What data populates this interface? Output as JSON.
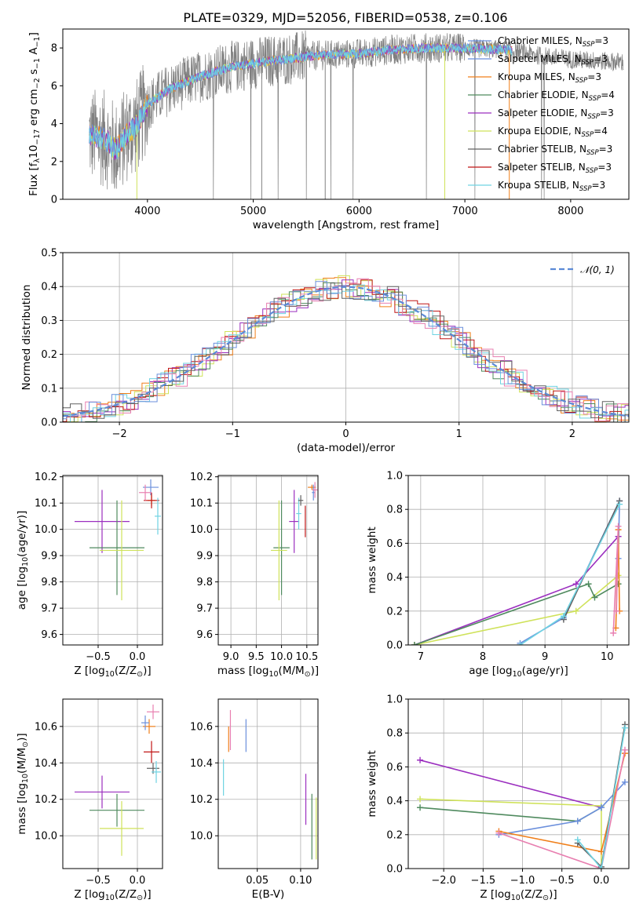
{
  "figure": {
    "title": "PLATE=0329, MJD=52056, FIBERID=0538, z=0.106"
  },
  "colors": {
    "Chabrier MILES": "#6b8fdc",
    "Salpeter MILES": "#6b8fdc",
    "Kroupa MILES": "#f07f1a",
    "Chabrier ELODIE": "#4f8a5e",
    "Salpeter ELODIE": "#9b2fbf",
    "Kroupa ELODIE": "#cfe25a",
    "Chabrier STELIB": "#606060",
    "Salpeter STELIB": "#c01515",
    "Kroupa STELIB": "#6fd3e2",
    "normal": "#5b8ad6",
    "pink": "#e87fb0"
  },
  "chart_data": [
    {
      "id": "spectrum",
      "type": "line",
      "xlabel": "wavelength [Angstrom, rest frame]",
      "ylabel": "Flux [f$_\\lambda$10$^{-17}$ erg cm$^{-2}$ s$^{-1}$ A$^{-1}$]",
      "ylabel_parts": [
        "Flux [f",
        "λ",
        "10",
        "−17",
        " erg cm",
        "−2",
        " s",
        "−1",
        " A",
        "−1",
        "]"
      ],
      "xlim": [
        3200,
        8550
      ],
      "ylim": [
        0,
        9
      ],
      "xticks": [
        4000,
        5000,
        6000,
        7000,
        8000
      ],
      "yticks": [
        0,
        2,
        4,
        6,
        8
      ],
      "legend_position": "upper right",
      "legend": [
        {
          "name": "Chabrier MILES",
          "nssp": "3"
        },
        {
          "name": "Salpeter MILES",
          "nssp": "3"
        },
        {
          "name": "Kroupa MILES",
          "nssp": "3"
        },
        {
          "name": "Chabrier ELODIE",
          "nssp": "4"
        },
        {
          "name": "Salpeter ELODIE",
          "nssp": "3"
        },
        {
          "name": "Kroupa ELODIE",
          "nssp": "4"
        },
        {
          "name": "Chabrier STELIB",
          "nssp": "3"
        },
        {
          "name": "Salpeter STELIB",
          "nssp": "3"
        },
        {
          "name": "Kroupa STELIB",
          "nssp": "3"
        }
      ],
      "legend_suffix": "N",
      "legend_sub": "SSP",
      "continuum": [
        [
          3450,
          3.4
        ],
        [
          3600,
          3.2
        ],
        [
          3700,
          2.6
        ],
        [
          3800,
          3.4
        ],
        [
          3900,
          3.9
        ],
        [
          4000,
          5.0
        ],
        [
          4200,
          5.8
        ],
        [
          4500,
          6.5
        ],
        [
          4800,
          7.0
        ],
        [
          5000,
          7.2
        ],
        [
          5300,
          7.4
        ],
        [
          5600,
          7.6
        ],
        [
          6000,
          7.7
        ],
        [
          6300,
          7.9
        ],
        [
          6600,
          8.0
        ],
        [
          7000,
          8.0
        ],
        [
          7400,
          7.9
        ],
        [
          7700,
          7.6
        ],
        [
          8000,
          7.4
        ],
        [
          8300,
          7.3
        ],
        [
          8500,
          7.25
        ]
      ]
    },
    {
      "id": "residuals",
      "type": "histogram",
      "xlabel": "(data-model)/error",
      "ylabel": "Normed distribution",
      "xlim": [
        -2.5,
        2.5
      ],
      "ylim": [
        0,
        0.5
      ],
      "xticks": [
        -2,
        -1,
        0,
        1,
        2
      ],
      "xtick_labels": [
        "−2",
        "−1",
        "0",
        "1",
        "2"
      ],
      "yticks": [
        0.0,
        0.1,
        0.2,
        0.3,
        0.4,
        0.5
      ],
      "ytick_labels": [
        "0.0",
        "0.1",
        "0.2",
        "0.3",
        "0.4",
        "0.5"
      ],
      "grid": true,
      "legend_position": "upper right",
      "reference_curve": {
        "name": "𝒩(0, 1)",
        "mean": 0,
        "sigma": 1
      }
    },
    {
      "id": "age_vs_Z",
      "type": "scatter",
      "xlabel_parts": [
        "Z [log",
        "10",
        "(Z/Z",
        "⊙",
        ")]"
      ],
      "ylabel_parts": [
        "age  [log",
        "10",
        "(age/yr)]"
      ],
      "xlim": [
        -0.95,
        0.32
      ],
      "ylim": [
        9.56,
        10.205
      ],
      "xticks": [
        -0.5,
        0.0
      ],
      "xtick_labels": [
        "−0.5",
        "0.0"
      ],
      "yticks": [
        9.6,
        9.7,
        9.8,
        9.9,
        10.0,
        10.1,
        10.2
      ],
      "ytick_labels": [
        "9.6",
        "9.7",
        "9.8",
        "9.9",
        "10.0",
        "10.1",
        "10.2"
      ],
      "grid": true,
      "points": [
        {
          "series": "Salpeter ELODIE",
          "x": -0.45,
          "xerr": 0.35,
          "y": 10.03,
          "yerr": 0.12
        },
        {
          "series": "Chabrier ELODIE",
          "x": -0.26,
          "xerr": 0.35,
          "y": 9.93,
          "yerr": 0.18
        },
        {
          "series": "Kroupa ELODIE",
          "x": -0.2,
          "xerr": 0.28,
          "y": 9.92,
          "yerr": 0.19
        },
        {
          "series": "Chabrier MILES",
          "x": 0.17,
          "xerr": 0.1,
          "y": 10.16,
          "yerr": 0.03
        },
        {
          "series": "Kroupa MILES",
          "x": 0.18,
          "xerr": 0.05,
          "y": 10.11,
          "yerr": 0.02
        },
        {
          "series": "Salpeter STELIB",
          "x": 0.18,
          "xerr": 0.1,
          "y": 10.11,
          "yerr": 0.03
        },
        {
          "series": "pink",
          "x": 0.1,
          "xerr": 0.08,
          "y": 10.14,
          "yerr": 0.03
        },
        {
          "series": "Kroupa STELIB",
          "x": 0.26,
          "xerr": 0.04,
          "y": 10.05,
          "yerr": 0.07
        }
      ]
    },
    {
      "id": "age_vs_mass",
      "type": "scatter",
      "xlabel_parts": [
        "mass [log",
        "10",
        "(M/M",
        "⊙",
        ")]"
      ],
      "xlim": [
        8.75,
        10.72
      ],
      "ylim": [
        9.56,
        10.205
      ],
      "xticks": [
        9.0,
        9.5,
        10.0,
        10.5
      ],
      "xtick_labels": [
        "9.0",
        "9.5",
        "10.0",
        "10.5"
      ],
      "yticks": [
        9.6,
        9.7,
        9.8,
        9.9,
        10.0,
        10.1,
        10.2
      ],
      "ytick_labels": [
        "9.6",
        "9.7",
        "9.8",
        "9.9",
        "10.0",
        "10.1",
        "10.2"
      ],
      "grid": true,
      "points": [
        {
          "series": "Chabrier ELODIE",
          "x": 10.0,
          "xerr": 0.16,
          "y": 9.93,
          "yerr": 0.18
        },
        {
          "series": "Kroupa ELODIE",
          "x": 9.95,
          "xerr": 0.16,
          "y": 9.92,
          "yerr": 0.19
        },
        {
          "series": "Salpeter ELODIE",
          "x": 10.25,
          "xerr": 0.1,
          "y": 10.03,
          "yerr": 0.12
        },
        {
          "series": "Salpeter STELIB",
          "x": 10.47,
          "xerr": 0.0,
          "y": 10.03,
          "yerr": 0.06
        },
        {
          "series": "Kroupa STELIB",
          "x": 10.34,
          "xerr": 0.05,
          "y": 10.06,
          "yerr": 0.06
        },
        {
          "series": "Chabrier STELIB",
          "x": 10.38,
          "xerr": 0.05,
          "y": 10.11,
          "yerr": 0.02
        },
        {
          "series": "Kroupa MILES",
          "x": 10.6,
          "xerr": 0.08,
          "y": 10.16,
          "yerr": 0.01
        },
        {
          "series": "Chabrier MILES",
          "x": 10.63,
          "xerr": 0.03,
          "y": 10.14,
          "yerr": 0.03
        },
        {
          "series": "pink",
          "x": 10.66,
          "xerr": 0.05,
          "y": 10.15,
          "yerr": 0.03
        }
      ]
    },
    {
      "id": "weight_vs_age",
      "type": "line",
      "xlabel_parts": [
        "age  [log",
        "10",
        "(age/yr)]"
      ],
      "ylabel": "mass weight",
      "xlim": [
        6.8,
        10.35
      ],
      "ylim": [
        0,
        1
      ],
      "xticks": [
        7,
        8,
        9,
        10
      ],
      "xtick_labels": [
        "7",
        "8",
        "9",
        "10"
      ],
      "yticks": [
        0.0,
        0.2,
        0.4,
        0.6,
        0.8,
        1.0
      ],
      "ytick_labels": [
        "0.0",
        "0.2",
        "0.4",
        "0.6",
        "0.8",
        "1.0"
      ],
      "grid": true,
      "series": [
        {
          "name": "Salpeter ELODIE",
          "x": [
            6.9,
            9.5,
            10.18
          ],
          "y": [
            0.0,
            0.36,
            0.64
          ]
        },
        {
          "name": "Kroupa ELODIE",
          "x": [
            6.9,
            9.5,
            10.18
          ],
          "y": [
            0.0,
            0.2,
            0.41
          ]
        },
        {
          "name": "Chabrier ELODIE",
          "x": [
            6.9,
            9.7,
            9.8,
            10.18
          ],
          "y": [
            0.0,
            0.36,
            0.28,
            0.36
          ]
        },
        {
          "name": "Chabrier MILES",
          "x": [
            8.6,
            9.3,
            10.2,
            10.18
          ],
          "y": [
            0.01,
            0.16,
            0.85,
            0.51
          ]
        },
        {
          "name": "Kroupa MILES",
          "x": [
            10.14,
            10.18,
            10.2
          ],
          "y": [
            0.1,
            0.68,
            0.2
          ]
        },
        {
          "name": "pink",
          "x": [
            10.1,
            10.18,
            10.15
          ],
          "y": [
            0.07,
            0.7,
            0.2
          ]
        },
        {
          "name": "Chabrier STELIB",
          "x": [
            9.3,
            10.2
          ],
          "y": [
            0.15,
            0.85
          ]
        },
        {
          "name": "Kroupa STELIB",
          "x": [
            8.6,
            9.3,
            10.2
          ],
          "y": [
            0.0,
            0.17,
            0.83
          ]
        }
      ]
    },
    {
      "id": "mass_vs_Z",
      "type": "scatter",
      "xlabel_parts": [
        "Z [log",
        "10",
        "(Z/Z",
        "⊙",
        ")]"
      ],
      "ylabel_parts": [
        "mass [log",
        "10",
        "(M/M",
        "⊙",
        ")]"
      ],
      "xlim": [
        -0.95,
        0.32
      ],
      "ylim": [
        9.82,
        10.75
      ],
      "xticks": [
        -0.5,
        0.0
      ],
      "xtick_labels": [
        "−0.5",
        "0.0"
      ],
      "yticks": [
        10.0,
        10.2,
        10.4,
        10.6
      ],
      "ytick_labels": [
        "10.0",
        "10.2",
        "10.4",
        "10.6"
      ],
      "grid": true,
      "points": [
        {
          "series": "Salpeter ELODIE",
          "x": -0.45,
          "xerr": 0.35,
          "y": 10.24,
          "yerr": 0.09
        },
        {
          "series": "Chabrier ELODIE",
          "x": -0.26,
          "xerr": 0.35,
          "y": 10.14,
          "yerr": 0.09
        },
        {
          "series": "Kroupa ELODIE",
          "x": -0.2,
          "xerr": 0.28,
          "y": 10.04,
          "yerr": 0.15
        },
        {
          "series": "Salpeter STELIB",
          "x": 0.18,
          "xerr": 0.1,
          "y": 10.46,
          "yerr": 0.06
        },
        {
          "series": "Chabrier STELIB",
          "x": 0.2,
          "xerr": 0.08,
          "y": 10.37,
          "yerr": 0.03
        },
        {
          "series": "Kroupa STELIB",
          "x": 0.24,
          "xerr": 0.06,
          "y": 10.35,
          "yerr": 0.06
        },
        {
          "series": "Kroupa MILES",
          "x": 0.15,
          "xerr": 0.08,
          "y": 10.6,
          "yerr": 0.04
        },
        {
          "series": "Chabrier MILES",
          "x": 0.1,
          "xerr": 0.05,
          "y": 10.62,
          "yerr": 0.04
        },
        {
          "series": "pink",
          "x": 0.2,
          "xerr": 0.08,
          "y": 10.68,
          "yerr": 0.04
        }
      ]
    },
    {
      "id": "mass_vs_EBV",
      "type": "scatter",
      "xlabel": "E(B-V)",
      "xlim": [
        0.005,
        0.12
      ],
      "ylim": [
        9.82,
        10.75
      ],
      "xticks": [
        0.05,
        0.1
      ],
      "xtick_labels": [
        "0.05",
        "0.10"
      ],
      "yticks": [
        10.0,
        10.2,
        10.4,
        10.6
      ],
      "ytick_labels": [
        "10.0",
        "10.2",
        "10.4",
        "10.6"
      ],
      "grid": true,
      "points": [
        {
          "series": "Kroupa STELIB",
          "x": 0.011,
          "y": 10.32,
          "yerr": 0.1
        },
        {
          "series": "Kroupa MILES",
          "x": 0.017,
          "y": 10.53,
          "yerr": 0.07
        },
        {
          "series": "pink",
          "x": 0.019,
          "y": 10.58,
          "yerr": 0.11
        },
        {
          "series": "Chabrier MILES",
          "x": 0.037,
          "y": 10.55,
          "yerr": 0.09
        },
        {
          "series": "Salpeter ELODIE",
          "x": 0.106,
          "y": 10.2,
          "yerr": 0.14
        },
        {
          "series": "Chabrier ELODIE",
          "x": 0.113,
          "y": 10.05,
          "yerr": 0.18
        },
        {
          "series": "Kroupa ELODIE",
          "x": 0.118,
          "y": 10.04,
          "yerr": 0.17
        }
      ]
    },
    {
      "id": "weight_vs_Z",
      "type": "line",
      "xlabel_parts": [
        "Z [log",
        "10",
        "(Z/Z",
        "⊙",
        ")]"
      ],
      "ylabel": "mass weight",
      "xlim": [
        -2.45,
        0.35
      ],
      "ylim": [
        0,
        1
      ],
      "xticks": [
        -2.0,
        -1.5,
        -1.0,
        -0.5,
        0.0
      ],
      "xtick_labels": [
        "−2.0",
        "−1.5",
        "−1.0",
        "−0.5",
        "0.0"
      ],
      "yticks": [
        0.0,
        0.2,
        0.4,
        0.6,
        0.8,
        1.0
      ],
      "ytick_labels": [
        "0.0",
        "0.2",
        "0.4",
        "0.6",
        "0.8",
        "1.0"
      ],
      "grid": true,
      "series": [
        {
          "name": "Salpeter ELODIE",
          "x": [
            -2.3,
            0.0
          ],
          "y": [
            0.64,
            0.36
          ]
        },
        {
          "name": "Kroupa ELODIE",
          "x": [
            -2.3,
            0.0,
            0.0
          ],
          "y": [
            0.41,
            0.37,
            0.0
          ]
        },
        {
          "name": "Chabrier ELODIE",
          "x": [
            -2.3,
            -0.3,
            0.0
          ],
          "y": [
            0.36,
            0.28,
            0.36
          ]
        },
        {
          "name": "Chabrier MILES",
          "x": [
            -1.3,
            -0.3,
            0.0,
            0.3
          ],
          "y": [
            0.2,
            0.28,
            0.36,
            0.51
          ]
        },
        {
          "name": "Kroupa MILES",
          "x": [
            -1.3,
            0.0,
            0.3
          ],
          "y": [
            0.22,
            0.1,
            0.68
          ]
        },
        {
          "name": "pink",
          "x": [
            -1.3,
            0.0,
            0.3
          ],
          "y": [
            0.21,
            0.0,
            0.7
          ]
        },
        {
          "name": "Chabrier STELIB",
          "x": [
            -0.3,
            0.0,
            0.3
          ],
          "y": [
            0.15,
            0.01,
            0.85
          ]
        },
        {
          "name": "Kroupa STELIB",
          "x": [
            -0.3,
            0.0,
            0.3
          ],
          "y": [
            0.17,
            0.0,
            0.83
          ]
        }
      ]
    }
  ]
}
